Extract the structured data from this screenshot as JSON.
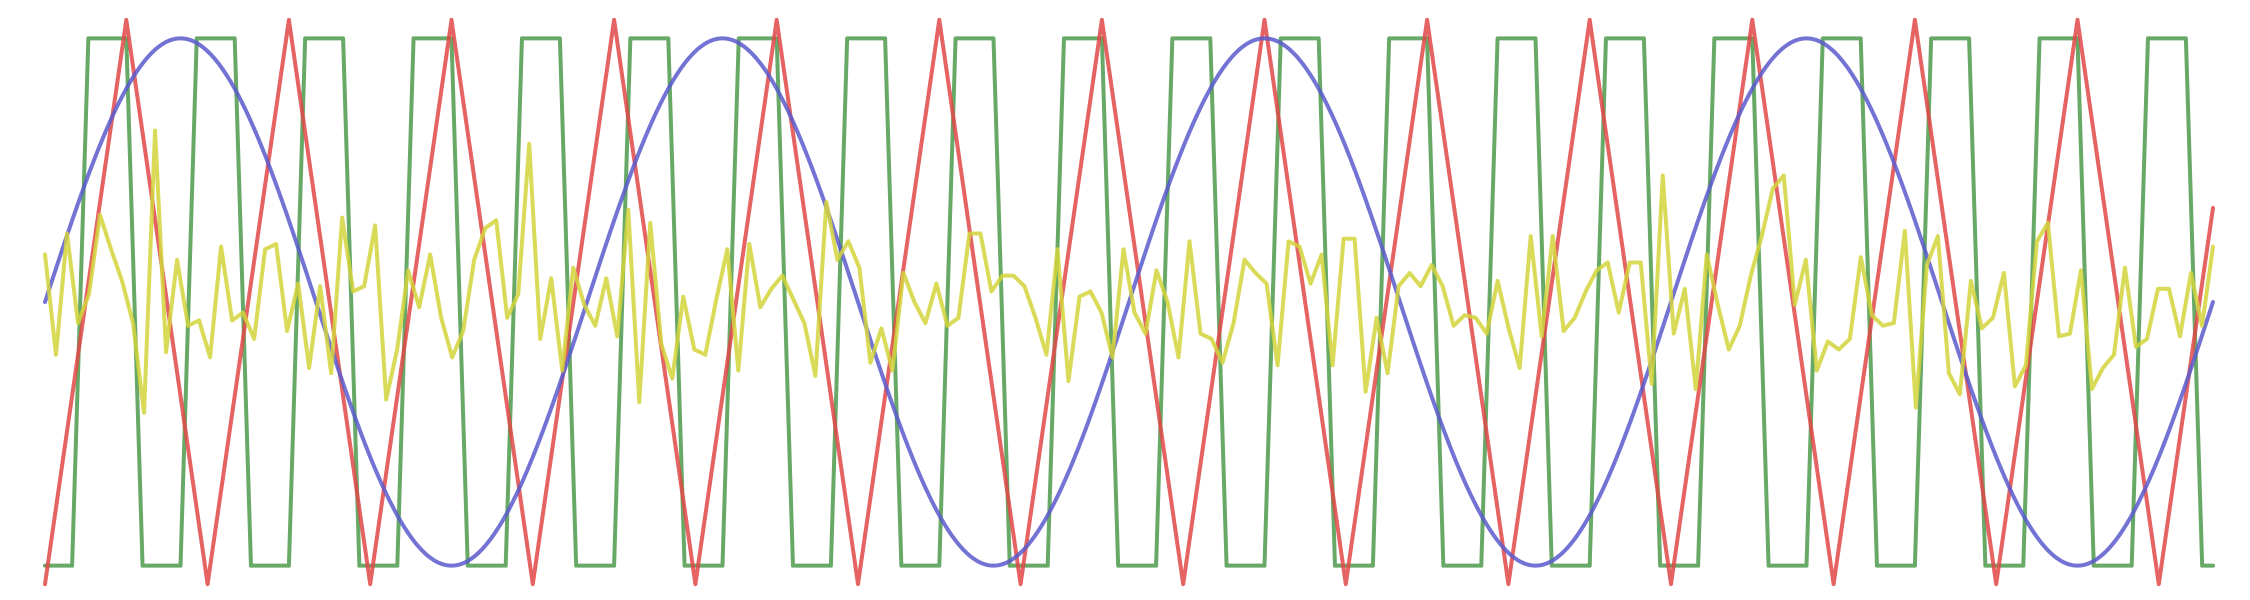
{
  "chart_data": {
    "type": "line",
    "title": "",
    "xlabel": "",
    "ylabel": "",
    "grid": false,
    "legend": "none",
    "xlim": [
      0,
      200
    ],
    "ylim": [
      -1.1,
      1.1
    ],
    "series": [
      {
        "key": "square",
        "color": "#4e9a4e",
        "shape": "square",
        "amplitude": 1.0,
        "period": 10,
        "phase": 0.75,
        "duty": 0.5,
        "transition": 0.15
      },
      {
        "key": "triangle",
        "color": "#e04848",
        "shape": "triangle",
        "amplitude": 1.07,
        "period": 15,
        "phase": 0
      },
      {
        "key": "sine",
        "color": "#5a5acd",
        "shape": "sine",
        "amplitude": 1.0,
        "period": 50,
        "phase": 0
      },
      {
        "key": "noise",
        "color": "#d4d43c",
        "shape": "noise",
        "values": [
          0.18,
          -0.2,
          0.26,
          -0.08,
          0.03,
          0.33,
          0.2,
          0.08,
          -0.08,
          -0.42,
          0.65,
          -0.19,
          0.16,
          -0.09,
          -0.07,
          -0.21,
          0.21,
          -0.07,
          -0.04,
          -0.14,
          0.2,
          0.22,
          -0.11,
          0.07,
          -0.25,
          0.06,
          -0.27,
          0.32,
          0.04,
          0.06,
          0.29,
          -0.37,
          -0.18,
          0.12,
          -0.02,
          0.18,
          -0.06,
          -0.21,
          -0.11,
          0.16,
          0.28,
          0.31,
          -0.06,
          0.03,
          0.6,
          -0.14,
          0.09,
          -0.26,
          0.13,
          -0.01,
          -0.09,
          0.09,
          -0.13,
          0.35,
          -0.38,
          0.3,
          -0.16,
          -0.29,
          0.02,
          -0.18,
          -0.2,
          0.01,
          0.2,
          -0.26,
          0.22,
          -0.02,
          0.05,
          0.1,
          0.01,
          -0.08,
          -0.28,
          0.38,
          0.16,
          0.23,
          0.13,
          -0.23,
          -0.1,
          -0.26,
          0.11,
          0.0,
          -0.08,
          0.07,
          -0.09,
          -0.06,
          0.26,
          0.26,
          0.04,
          0.1,
          0.1,
          0.06,
          -0.06,
          -0.2,
          0.2,
          -0.3,
          0.02,
          0.04,
          -0.04,
          -0.21,
          0.2,
          -0.04,
          -0.12,
          0.12,
          0.0,
          -0.21,
          0.23,
          -0.12,
          -0.14,
          -0.23,
          -0.08,
          0.16,
          0.11,
          0.07,
          -0.24,
          0.23,
          0.21,
          0.07,
          0.18,
          -0.24,
          0.24,
          0.24,
          -0.34,
          -0.06,
          -0.27,
          0.06,
          0.11,
          0.06,
          0.14,
          0.06,
          -0.09,
          -0.05,
          -0.06,
          -0.12,
          0.08,
          -0.1,
          -0.25,
          0.25,
          -0.13,
          0.25,
          -0.11,
          -0.06,
          0.04,
          0.12,
          0.15,
          -0.04,
          0.15,
          0.15,
          -0.31,
          0.48,
          -0.12,
          0.05,
          -0.33,
          0.18,
          -0.01,
          -0.18,
          -0.09,
          0.1,
          0.25,
          0.43,
          0.48,
          -0.01,
          0.16,
          -0.26,
          -0.15,
          -0.18,
          -0.14,
          0.17,
          -0.05,
          -0.09,
          -0.08,
          0.27,
          -0.4,
          0.14,
          0.25,
          -0.27,
          -0.35,
          0.08,
          -0.1,
          -0.06,
          0.11,
          -0.32,
          -0.24,
          0.23,
          0.3,
          -0.13,
          -0.12,
          0.12,
          -0.33,
          -0.25,
          -0.2,
          0.13,
          -0.17,
          -0.14,
          0.05,
          0.05,
          -0.13,
          0.11,
          -0.09,
          0.21
        ]
      }
    ]
  }
}
